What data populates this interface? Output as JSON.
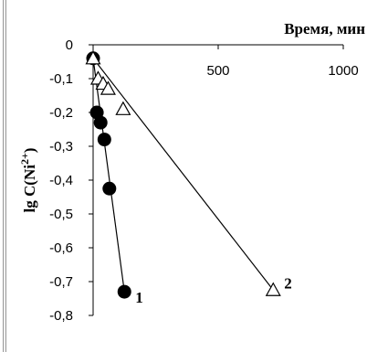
{
  "chart_data": {
    "type": "scatter",
    "xlabel": "Время, мин",
    "ylabel_main": "lg C(Ni",
    "ylabel_sup": "2+",
    "ylabel_end": ")",
    "xlim": [
      0,
      1000
    ],
    "ylim": [
      -0.8,
      0
    ],
    "x_axis_position": "top",
    "x_ticks": [
      0,
      500,
      1000
    ],
    "x_tick_labels": [
      "",
      "500",
      "1000"
    ],
    "y_ticks": [
      0,
      -0.1,
      -0.2,
      -0.3,
      -0.4,
      -0.5,
      -0.6,
      -0.7,
      -0.8
    ],
    "y_tick_labels": [
      "0",
      "-0,1",
      "-0,2",
      "-0,3",
      "-0,4",
      "-0,5",
      "-0,6",
      "-0,7",
      "-0,8"
    ],
    "grid": false,
    "series": [
      {
        "name": "1",
        "marker": "filled-circle",
        "color": "#000000",
        "points": [
          {
            "x": 0,
            "y": -0.04
          },
          {
            "x": 15,
            "y": -0.2
          },
          {
            "x": 30,
            "y": -0.23
          },
          {
            "x": 45,
            "y": -0.28
          },
          {
            "x": 65,
            "y": -0.425
          },
          {
            "x": 125,
            "y": -0.73
          }
        ]
      },
      {
        "name": "2",
        "marker": "open-triangle",
        "color": "#000000",
        "points": [
          {
            "x": 0,
            "y": -0.04
          },
          {
            "x": 20,
            "y": -0.1
          },
          {
            "x": 40,
            "y": -0.115
          },
          {
            "x": 60,
            "y": -0.13
          },
          {
            "x": 120,
            "y": -0.19
          },
          {
            "x": 720,
            "y": -0.725
          }
        ]
      }
    ]
  }
}
